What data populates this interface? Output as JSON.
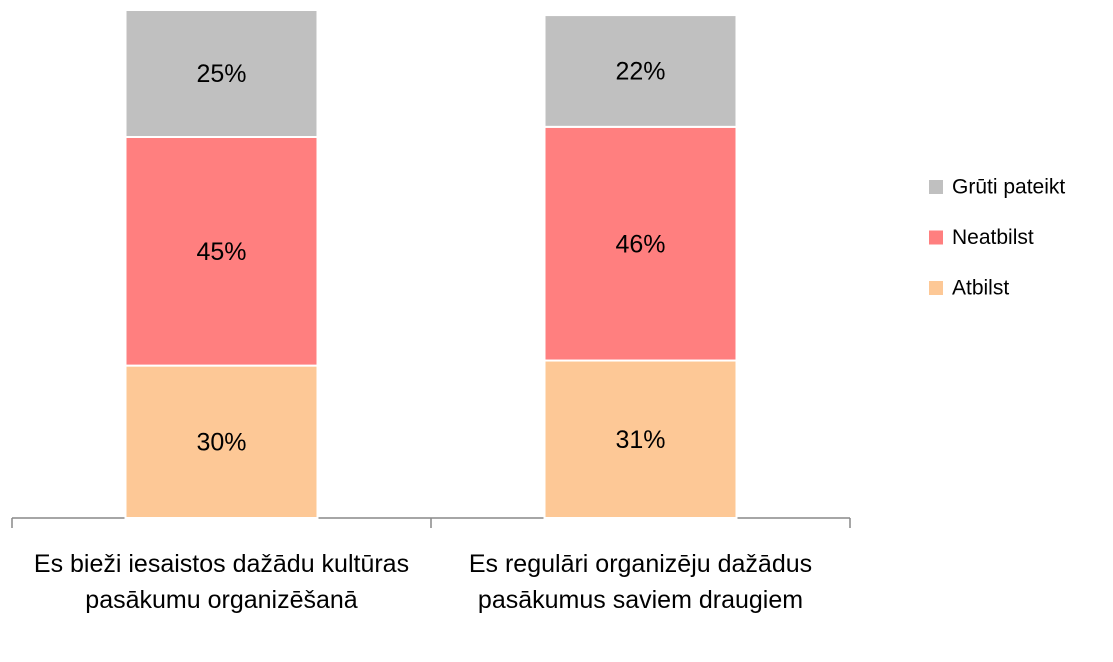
{
  "chart_data": {
    "type": "stacked_bar",
    "categories": [
      "Es bieži iesaistos dažādu kultūras pasākumu organizēšanā",
      "Es regulāri organizēju dažādus pasākumus saviem draugiem"
    ],
    "series": [
      {
        "name": "Atbilst",
        "color": "#fdc896",
        "values": [
          30,
          31
        ],
        "value_labels": [
          "30%",
          "31%"
        ]
      },
      {
        "name": "Neatbilst",
        "color": "#ff7f7f",
        "values": [
          45,
          46
        ],
        "value_labels": [
          "45%",
          "46%"
        ]
      },
      {
        "name": "Grūti pateikt",
        "color": "#c0c0c0",
        "values": [
          25,
          22
        ],
        "value_labels": [
          "25%",
          "22%"
        ]
      }
    ],
    "ylim": [
      0,
      100
    ],
    "legend": "right"
  }
}
